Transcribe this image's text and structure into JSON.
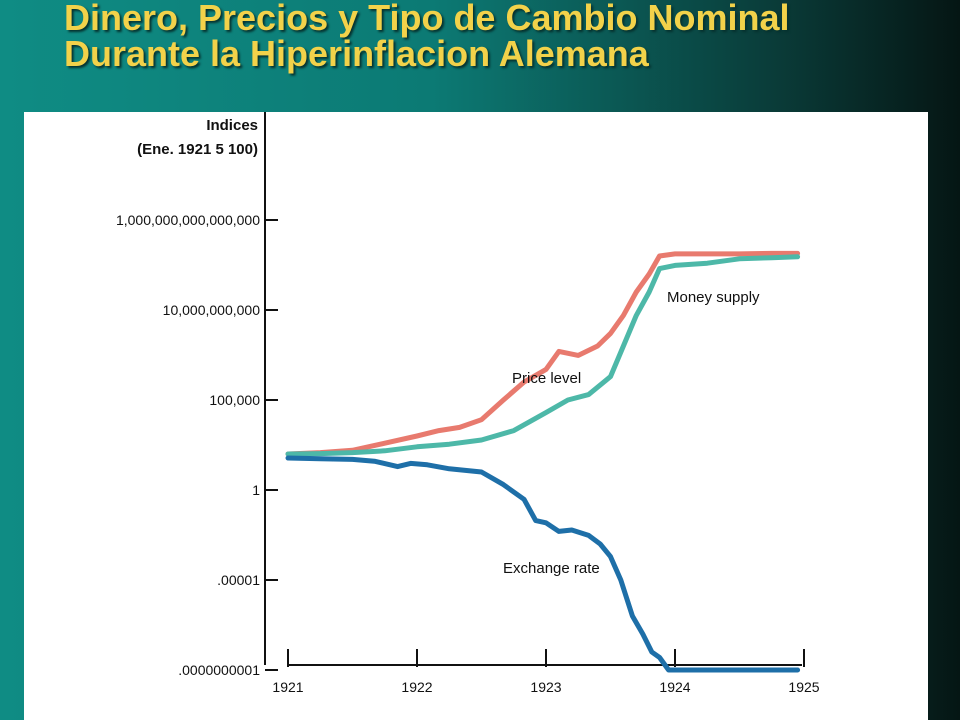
{
  "slide": {
    "title_line1": "Dinero, Precios y Tipo de Cambio Nominal",
    "title_line2": "Durante la Hiperinflacion Alemana",
    "title_color": "#f2d24a"
  },
  "chart_data": {
    "type": "line",
    "title": "",
    "ylabel_line1": "Indices",
    "ylabel_line2": "(Ene. 1921 5 100)",
    "yscale": "log",
    "y_ticks": [
      {
        "label": ".0000000001",
        "value": 1e-10
      },
      {
        "label": ".00001",
        "value": 1e-05
      },
      {
        "label": "1",
        "value": 1
      },
      {
        "label": "100,000",
        "value": 100000.0
      },
      {
        "label": "10,000,000,000",
        "value": 10000000000.0
      },
      {
        "label": "1,000,000,000,000,000",
        "value": 1000000000000000.0
      }
    ],
    "x_ticks": [
      {
        "label": "1921",
        "value": 1921
      },
      {
        "label": "1922",
        "value": 1922
      },
      {
        "label": "1923",
        "value": 1923
      },
      {
        "label": "1924",
        "value": 1924
      },
      {
        "label": "1925",
        "value": 1925
      }
    ],
    "xlim": [
      1921,
      1925
    ],
    "ylim": [
      1e-10,
      1e+16
    ],
    "grid": false,
    "series": [
      {
        "name": "Price level",
        "color": "#e87a6e",
        "points": [
          [
            1921.0,
            100
          ],
          [
            1921.25,
            120
          ],
          [
            1921.5,
            160
          ],
          [
            1921.75,
            400
          ],
          [
            1922.0,
            1000
          ],
          [
            1922.17,
            2000
          ],
          [
            1922.33,
            3000
          ],
          [
            1922.5,
            8000
          ],
          [
            1922.67,
            100000.0
          ],
          [
            1922.83,
            1000000.0
          ],
          [
            1923.0,
            5000000.0
          ],
          [
            1923.1,
            50000000.0
          ],
          [
            1923.25,
            30000000.0
          ],
          [
            1923.4,
            100000000.0
          ],
          [
            1923.5,
            500000000.0
          ],
          [
            1923.6,
            5000000000.0
          ],
          [
            1923.7,
            100000000000.0
          ],
          [
            1923.8,
            1000000000000.0
          ],
          [
            1923.88,
            10000000000000.0
          ],
          [
            1924.0,
            13000000000000.0
          ],
          [
            1924.25,
            13000000000000.0
          ],
          [
            1924.5,
            13000000000000.0
          ],
          [
            1924.75,
            14000000000000.0
          ],
          [
            1924.95,
            14000000000000.0
          ]
        ]
      },
      {
        "name": "Money supply",
        "color": "#4db8a8",
        "points": [
          [
            1921.0,
            100
          ],
          [
            1921.25,
            105
          ],
          [
            1921.5,
            120
          ],
          [
            1921.75,
            150
          ],
          [
            1922.0,
            250
          ],
          [
            1922.25,
            350
          ],
          [
            1922.5,
            600
          ],
          [
            1922.75,
            2000
          ],
          [
            1923.0,
            20000.0
          ],
          [
            1923.17,
            100000.0
          ],
          [
            1923.33,
            200000.0
          ],
          [
            1923.5,
            2000000.0
          ],
          [
            1923.6,
            100000000.0
          ],
          [
            1923.7,
            5000000000.0
          ],
          [
            1923.8,
            100000000000.0
          ],
          [
            1923.88,
            2000000000000.0
          ],
          [
            1924.0,
            3000000000000.0
          ],
          [
            1924.25,
            4000000000000.0
          ],
          [
            1924.5,
            7000000000000.0
          ],
          [
            1924.75,
            8000000000000.0
          ],
          [
            1924.95,
            9000000000000.0
          ]
        ]
      },
      {
        "name": "Exchange rate",
        "color": "#1e6fa8",
        "points": [
          [
            1921.0,
            60
          ],
          [
            1921.25,
            55
          ],
          [
            1921.5,
            50
          ],
          [
            1921.67,
            40
          ],
          [
            1921.85,
            20
          ],
          [
            1921.95,
            30
          ],
          [
            1922.08,
            25
          ],
          [
            1922.25,
            15
          ],
          [
            1922.5,
            10
          ],
          [
            1922.67,
            2
          ],
          [
            1922.83,
            0.3
          ],
          [
            1922.92,
            0.02
          ],
          [
            1923.0,
            0.015
          ],
          [
            1923.1,
            0.005
          ],
          [
            1923.2,
            0.006
          ],
          [
            1923.33,
            0.003
          ],
          [
            1923.42,
            0.001
          ],
          [
            1923.5,
            0.0002
          ],
          [
            1923.58,
            1e-05
          ],
          [
            1923.67,
            1e-07
          ],
          [
            1923.75,
            1e-08
          ],
          [
            1923.82,
            1e-09
          ],
          [
            1923.88,
            5e-10
          ],
          [
            1923.95,
            1e-10
          ],
          [
            1924.0,
            1e-10
          ],
          [
            1924.25,
            1e-10
          ],
          [
            1924.5,
            1e-10
          ],
          [
            1924.75,
            1e-10
          ],
          [
            1924.95,
            1e-10
          ]
        ]
      }
    ]
  }
}
